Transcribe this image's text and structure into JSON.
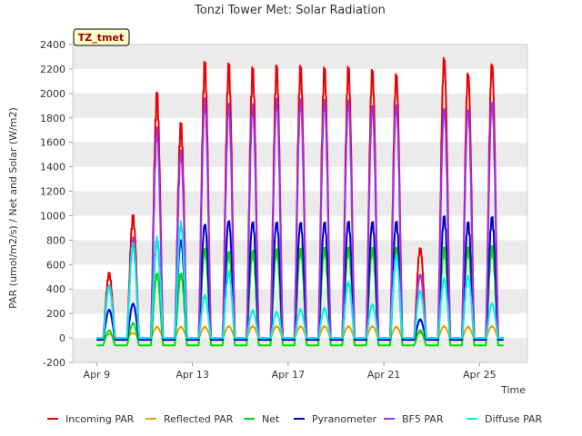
{
  "chart_data": {
    "type": "line",
    "title": "Tonzi Tower Met: Solar Radiation",
    "badge": "TZ_tmet",
    "xlabel": "Time",
    "ylabel": "PAR (umol/m2/s) / Net and Solar (W/m2)",
    "xlim": [
      8.0,
      27.0
    ],
    "ylim": [
      -200,
      2400
    ],
    "yticks": [
      -200,
      0,
      200,
      400,
      600,
      800,
      1000,
      1200,
      1400,
      1600,
      1800,
      2000,
      2200,
      2400
    ],
    "xticks": [
      {
        "value": 9,
        "label": "Apr 9"
      },
      {
        "value": 13,
        "label": "Apr 13"
      },
      {
        "value": 17,
        "label": "Apr 17"
      },
      {
        "value": 21,
        "label": "Apr 21"
      },
      {
        "value": 25,
        "label": "Apr 25"
      }
    ],
    "days": [
      9,
      10,
      11,
      12,
      13,
      14,
      15,
      16,
      17,
      18,
      19,
      20,
      21,
      22,
      23,
      24,
      25
    ],
    "series": [
      {
        "name": "Incoming PAR",
        "color": "#ee0000",
        "night": 0,
        "peaks": [
          520,
          980,
          1960,
          1720,
          2210,
          2200,
          2170,
          2190,
          2190,
          2180,
          2190,
          2170,
          2140,
          730,
          2280,
          2160,
          2240
        ]
      },
      {
        "name": "Reflected PAR",
        "color": "#f0a000",
        "night": 0,
        "peaks": [
          30,
          40,
          90,
          90,
          90,
          95,
          95,
          95,
          95,
          95,
          95,
          95,
          90,
          40,
          95,
          90,
          95
        ]
      },
      {
        "name": "Net",
        "color": "#00dd00",
        "night": -60,
        "peaks": [
          60,
          120,
          520,
          520,
          720,
          690,
          700,
          710,
          715,
          720,
          720,
          720,
          720,
          60,
          720,
          720,
          730
        ]
      },
      {
        "name": "Pyranometer",
        "color": "#0000cc",
        "night": -15,
        "peaks": [
          230,
          280,
          800,
          800,
          930,
          960,
          950,
          945,
          940,
          940,
          945,
          940,
          940,
          150,
          980,
          930,
          970
        ]
      },
      {
        "name": "BF5 PAR",
        "color": "#9933ee",
        "night": 0,
        "peaks": [
          420,
          800,
          1680,
          1500,
          1920,
          1880,
          1880,
          1930,
          1930,
          1930,
          1930,
          1890,
          1900,
          520,
          1880,
          1870,
          1930
        ]
      },
      {
        "name": "Diffuse PAR",
        "color": "#00eeee",
        "night": 0,
        "peaks": [
          420,
          750,
          800,
          920,
          340,
          530,
          220,
          210,
          230,
          240,
          450,
          270,
          660,
          380,
          480,
          500,
          280
        ]
      }
    ]
  }
}
